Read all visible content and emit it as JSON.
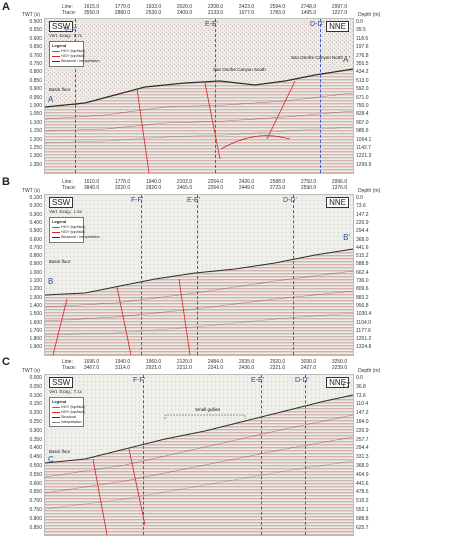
{
  "panels": [
    {
      "letter": "A",
      "header": {
        "line_label": "Line:",
        "trace_label": "Trace:",
        "lines": [
          "1615.0",
          "1770.0",
          "1933.0",
          "2020.0",
          "2208.0",
          "2423.0",
          "2594.0",
          "2748.0",
          "2997.0"
        ],
        "traces": [
          "3550.0",
          "2880.0",
          "2539.0",
          "2409.0",
          "2133.0",
          "1977.0",
          "1783.0",
          "1495.0",
          "1227.0"
        ]
      },
      "twt_label": "TWT (s)",
      "depth_label": "Depth (m)",
      "twt_ticks": [
        "0.500",
        "0.550",
        "0.600",
        "0.650",
        "0.700",
        "0.750",
        "0.800",
        "0.850",
        "0.900",
        "0.950",
        "1.000",
        "1.050",
        "1.100",
        "1.150",
        "1.200",
        "1.250",
        "1.300",
        "1.350"
      ],
      "depth_ticks": [
        "0.0",
        "39.5",
        "118.6",
        "197.6",
        "276.8",
        "355.5",
        "434.2",
        "513.0",
        "592.0",
        "671.0",
        "750.0",
        "828.4",
        "907.0",
        "985.6",
        "1064.1",
        "1142.7",
        "1221.3",
        "1299.9"
      ],
      "direction_left": "SSW",
      "direction_right": "NNE",
      "vert_exag": "Vert. Exag.: 1.7x",
      "legend": {
        "title": "Legend",
        "items": [
          "H10? (top/fault)",
          "H20? (top/fault)",
          "Structural / Interpretation"
        ]
      },
      "segments": [
        "F-F'",
        "E-E'",
        "D-D'"
      ],
      "start_label": "A",
      "end_label": "A'",
      "annotations": [
        "San Onofre Canyon South",
        "San Onofre Canyon North",
        "Basin floor"
      ]
    },
    {
      "letter": "B",
      "header": {
        "line_label": "Line:",
        "trace_label": "Trace:",
        "lines": [
          "1610.0",
          "1778.0",
          "1940.0",
          "2102.0",
          "2264.0",
          "2426.0",
          "2588.0",
          "2750.0",
          "2996.0"
        ],
        "traces": [
          "3840.0",
          "3220.0",
          "2820.0",
          "2465.0",
          "2264.0",
          "2449.0",
          "2723.0",
          "2590.0",
          "1376.0"
        ]
      },
      "twt_label": "TWT (s)",
      "depth_label": "Depth (m)",
      "twt_ticks": [
        "0.100",
        "0.200",
        "0.300",
        "0.400",
        "0.500",
        "0.600",
        "0.700",
        "0.800",
        "0.900",
        "1.000",
        "1.100",
        "1.200",
        "1.300",
        "1.400",
        "1.500",
        "1.600",
        "1.700",
        "1.800",
        "1.900"
      ],
      "depth_ticks": [
        "0.0",
        "73.6",
        "147.2",
        "220.9",
        "294.4",
        "368.0",
        "441.6",
        "515.2",
        "588.8",
        "662.4",
        "736.0",
        "809.6",
        "883.2",
        "956.8",
        "1030.4",
        "1104.0",
        "1177.6",
        "1251.2",
        "1324.8"
      ],
      "direction_left": "SSW",
      "direction_right": "NNE",
      "vert_exag": "Vert. Exag.: 1.5x",
      "legend": {
        "title": "Legend",
        "items": [
          "H10? (top/fault)",
          "H20? (top/fault)",
          "Structural / Interpretation"
        ]
      },
      "segments": [
        "F-F'",
        "E-E'",
        "D-D'"
      ],
      "start_label": "B",
      "end_label": "B'",
      "annotations": [
        "Basin floor"
      ]
    },
    {
      "letter": "C",
      "header": {
        "line_label": "Line:",
        "trace_label": "Trace:",
        "lines": [
          "1696.0",
          "1940.0",
          "1960.0",
          "2120.0",
          "2484.0",
          "2635.0",
          "2920.0",
          "3030.0",
          "3250.0"
        ],
        "traces": [
          "3467.0",
          "3114.0",
          "2921.0",
          "2211.0",
          "2241.0",
          "2436.0",
          "2221.0",
          "2427.0",
          "2239.0"
        ]
      },
      "twt_label": "TWT (s)",
      "depth_label": "Depth (m)",
      "twt_ticks": [
        "0.000",
        "0.050",
        "0.100",
        "0.150",
        "0.200",
        "0.250",
        "0.300",
        "0.350",
        "0.400",
        "0.450",
        "0.500",
        "0.550",
        "0.600",
        "0.650",
        "0.700",
        "0.750",
        "0.800",
        "0.850"
      ],
      "depth_ticks": [
        "0.0",
        "36.8",
        "73.6",
        "110.4",
        "147.2",
        "184.0",
        "220.9",
        "257.7",
        "294.4",
        "331.3",
        "368.0",
        "404.9",
        "441.6",
        "478.5",
        "515.2",
        "552.1",
        "588.8",
        "625.7"
      ],
      "direction_left": "SSW",
      "direction_right": "NNE",
      "vert_exag": "Vert. Exag.: 7.1x",
      "legend": {
        "title": "Legend",
        "items": [
          "H10? (top/fault)",
          "H20? (top/fault)",
          "Structural",
          "Interpretation"
        ]
      },
      "segments": [
        "F-F'",
        "E-E'",
        "D-D'"
      ],
      "start_label": "C",
      "end_label": "C'",
      "annotations": [
        "Small gullies",
        "Basin floor"
      ]
    }
  ]
}
